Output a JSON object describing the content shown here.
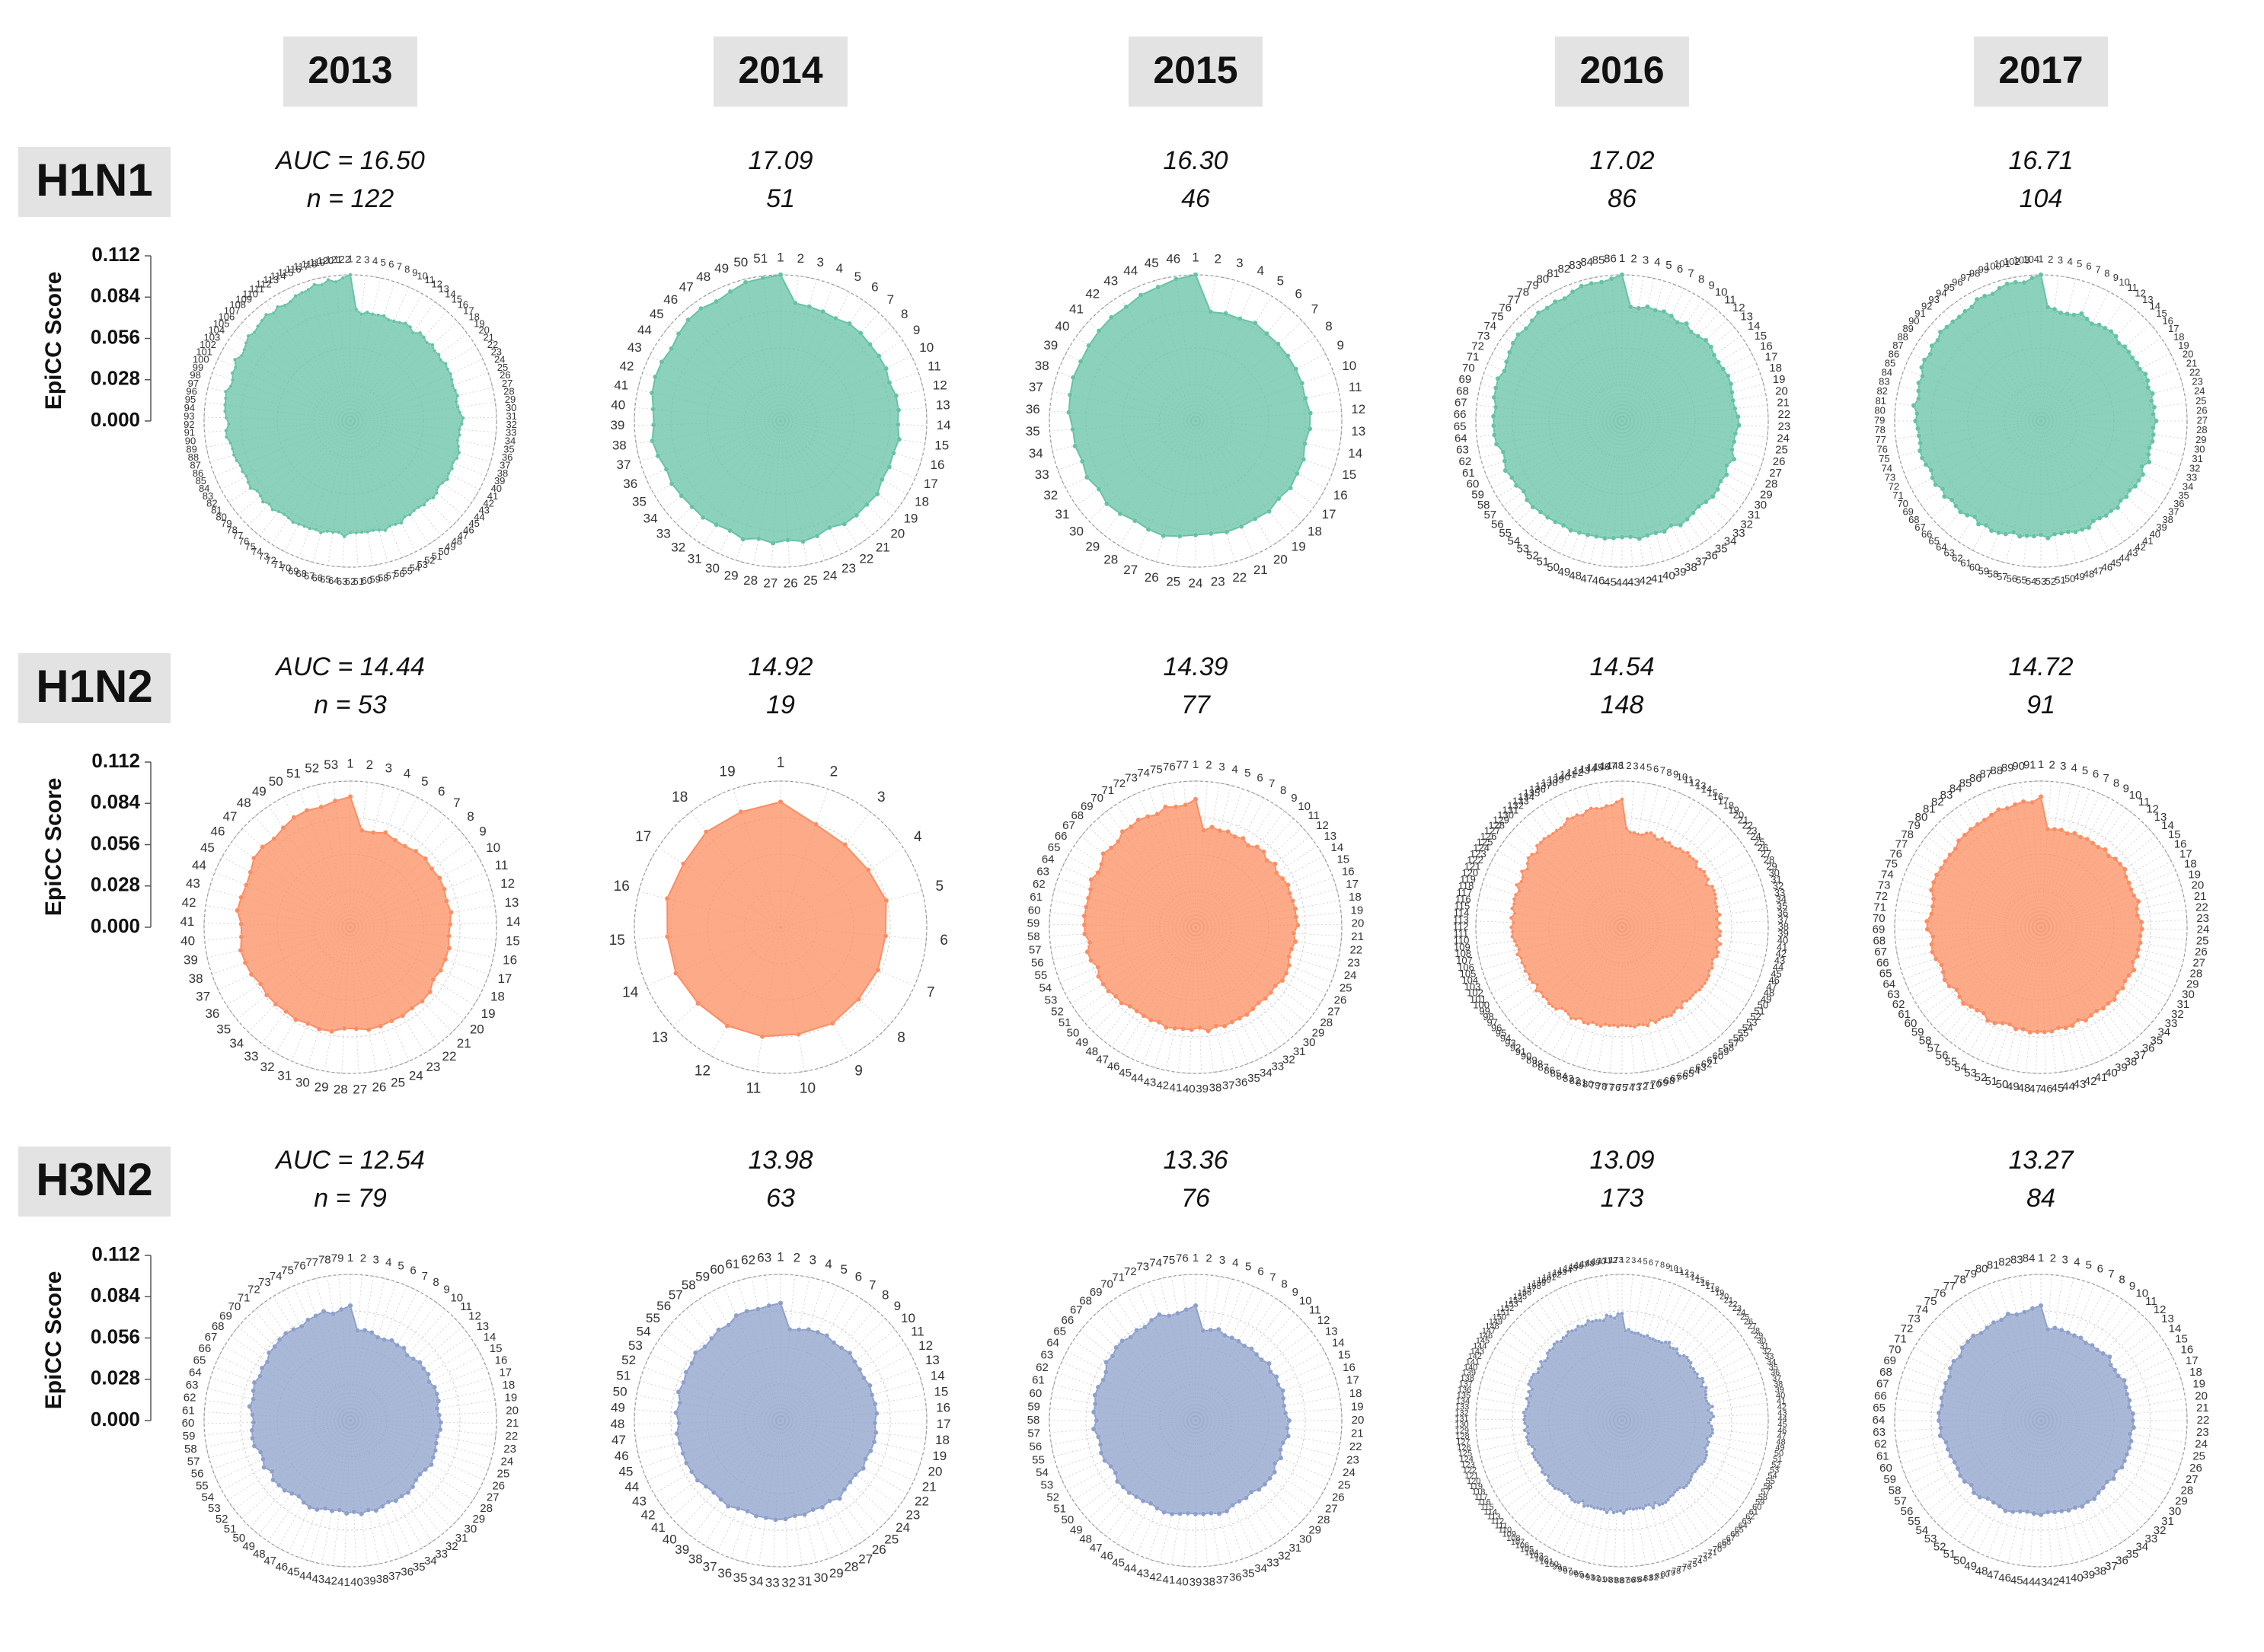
{
  "colors": {
    "H1N1": "#66c2a5",
    "H1N2": "#fc8d62",
    "H3N2": "#8da0cb",
    "year_box": "#e3e3e3",
    "subtype_box": "#e3e3e3",
    "grid": "#cccccc"
  },
  "years": [
    "2013",
    "2014",
    "2015",
    "2016",
    "2017"
  ],
  "subtypes": [
    "H1N1",
    "H1N2",
    "H3N2"
  ],
  "y_axis": {
    "label": "EpiCC Score",
    "ticks": [
      "0.112",
      "0.084",
      "0.056",
      "0.028",
      "0.000"
    ]
  },
  "chart_data": {
    "type": "radar",
    "rmax": 0.112,
    "rticks": [
      0.0,
      0.028,
      0.056,
      0.084,
      0.112
    ],
    "panels": [
      {
        "subtype": "H1N1",
        "year": "2013",
        "auc_text": "AUC = 16.50",
        "n_text": "n = 122",
        "auc": 16.5,
        "n": 122,
        "first_value": 0.112,
        "base_value": 0.084
      },
      {
        "subtype": "H1N1",
        "year": "2014",
        "auc_text": "17.09",
        "n_text": "51",
        "auc": 17.09,
        "n": 51,
        "first_value": 0.112,
        "base_value": 0.09
      },
      {
        "subtype": "H1N1",
        "year": "2015",
        "auc_text": "16.30",
        "n_text": "46",
        "auc": 16.3,
        "n": 46,
        "first_value": 0.112,
        "base_value": 0.086
      },
      {
        "subtype": "H1N1",
        "year": "2016",
        "auc_text": "17.02",
        "n_text": "86",
        "auc": 17.02,
        "n": 86,
        "first_value": 0.112,
        "base_value": 0.088
      },
      {
        "subtype": "H1N1",
        "year": "2017",
        "auc_text": "16.71",
        "n_text": "104",
        "auc": 16.71,
        "n": 104,
        "first_value": 0.112,
        "base_value": 0.086
      },
      {
        "subtype": "H1N2",
        "year": "2013",
        "auc_text": "AUC = 14.44",
        "n_text": "n = 53",
        "auc": 14.44,
        "n": 53,
        "first_value": 0.1,
        "base_value": 0.076
      },
      {
        "subtype": "H1N2",
        "year": "2014",
        "auc_text": "14.92",
        "n_text": "19",
        "auc": 14.92,
        "n": 19,
        "first_value": 0.096,
        "base_value": 0.082
      },
      {
        "subtype": "H1N2",
        "year": "2015",
        "auc_text": "14.39",
        "n_text": "77",
        "auc": 14.39,
        "n": 77,
        "first_value": 0.098,
        "base_value": 0.076
      },
      {
        "subtype": "H1N2",
        "year": "2016",
        "auc_text": "14.54",
        "n_text": "148",
        "auc": 14.54,
        "n": 148,
        "first_value": 0.098,
        "base_value": 0.074
      },
      {
        "subtype": "H1N2",
        "year": "2017",
        "auc_text": "14.72",
        "n_text": "91",
        "auc": 14.72,
        "n": 91,
        "first_value": 0.1,
        "base_value": 0.076
      },
      {
        "subtype": "H3N2",
        "year": "2013",
        "auc_text": "AUC = 12.54",
        "n_text": "n = 79",
        "auc": 12.54,
        "n": 79,
        "first_value": 0.088,
        "base_value": 0.068
      },
      {
        "subtype": "H3N2",
        "year": "2014",
        "auc_text": "13.98",
        "n_text": "63",
        "auc": 13.98,
        "n": 63,
        "first_value": 0.09,
        "base_value": 0.072
      },
      {
        "subtype": "H3N2",
        "year": "2015",
        "auc_text": "13.36",
        "n_text": "76",
        "auc": 13.36,
        "n": 76,
        "first_value": 0.088,
        "base_value": 0.07
      },
      {
        "subtype": "H3N2",
        "year": "2016",
        "auc_text": "13.09",
        "n_text": "173",
        "auc": 13.09,
        "n": 173,
        "first_value": 0.082,
        "base_value": 0.068
      },
      {
        "subtype": "H3N2",
        "year": "2017",
        "auc_text": "13.27",
        "n_text": "84",
        "auc": 13.27,
        "n": 84,
        "first_value": 0.088,
        "base_value": 0.07
      }
    ]
  }
}
